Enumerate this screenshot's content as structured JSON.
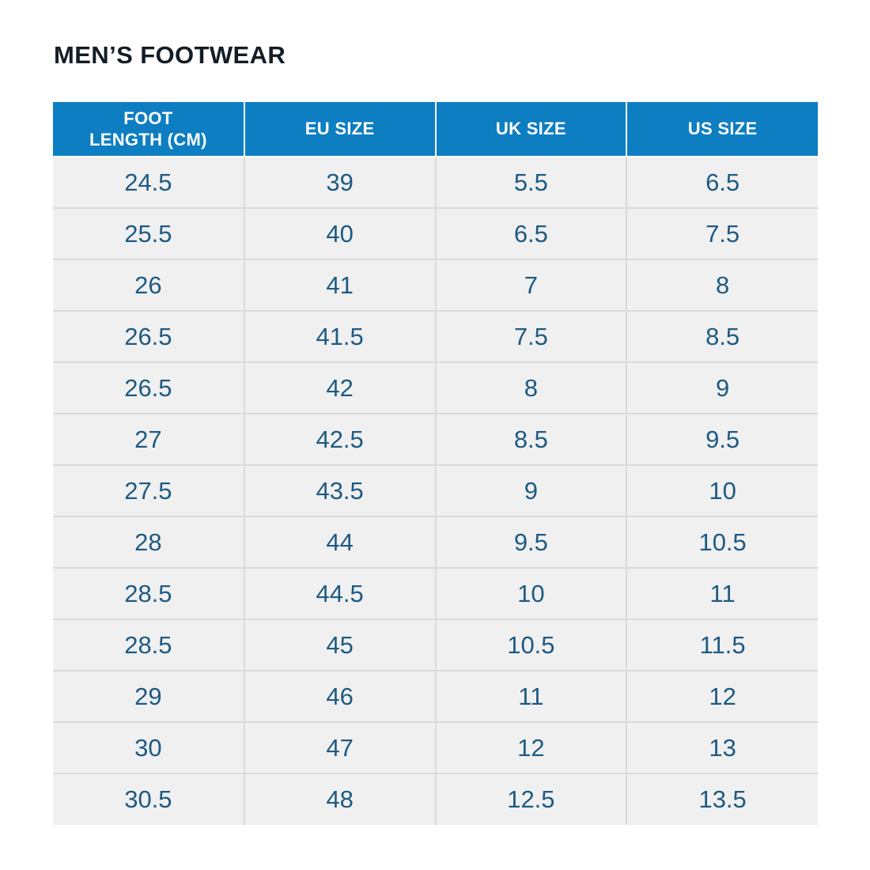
{
  "page": {
    "title": "MEN’S FOOTWEAR"
  },
  "table": {
    "headers": [
      "FOOT\nLENGTH (CM)",
      "EU SIZE",
      "UK SIZE",
      "US SIZE"
    ],
    "rows": [
      [
        "24.5",
        "39",
        "5.5",
        "6.5"
      ],
      [
        "25.5",
        "40",
        "6.5",
        "7.5"
      ],
      [
        "26",
        "41",
        "7",
        "8"
      ],
      [
        "26.5",
        "41.5",
        "7.5",
        "8.5"
      ],
      [
        "26.5",
        "42",
        "8",
        "9"
      ],
      [
        "27",
        "42.5",
        "8.5",
        "9.5"
      ],
      [
        "27.5",
        "43.5",
        "9",
        "10"
      ],
      [
        "28",
        "44",
        "9.5",
        "10.5"
      ],
      [
        "28.5",
        "44.5",
        "10",
        "11"
      ],
      [
        "28.5",
        "45",
        "10.5",
        "11.5"
      ],
      [
        "29",
        "46",
        "11",
        "12"
      ],
      [
        "30",
        "47",
        "12",
        "13"
      ],
      [
        "30.5",
        "48",
        "12.5",
        "13.5"
      ]
    ]
  },
  "colors": {
    "header_bg": "#0e7ec2",
    "header_text": "#ffffff",
    "cell_bg": "#f0f0f1",
    "cell_text": "#1e5a82",
    "title_text": "#141d26",
    "border": "#dadada"
  },
  "chart_data": {
    "type": "table",
    "title": "MEN’S FOOTWEAR",
    "columns": [
      "FOOT LENGTH (CM)",
      "EU SIZE",
      "UK SIZE",
      "US SIZE"
    ],
    "rows": [
      [
        24.5,
        39,
        5.5,
        6.5
      ],
      [
        25.5,
        40,
        6.5,
        7.5
      ],
      [
        26,
        41,
        7,
        8
      ],
      [
        26.5,
        41.5,
        7.5,
        8.5
      ],
      [
        26.5,
        42,
        8,
        9
      ],
      [
        27,
        42.5,
        8.5,
        9.5
      ],
      [
        27.5,
        43.5,
        9,
        10
      ],
      [
        28,
        44,
        9.5,
        10.5
      ],
      [
        28.5,
        44.5,
        10,
        11
      ],
      [
        28.5,
        45,
        10.5,
        11.5
      ],
      [
        29,
        46,
        11,
        12
      ],
      [
        30,
        47,
        12,
        13
      ],
      [
        30.5,
        48,
        12.5,
        13.5
      ]
    ]
  }
}
